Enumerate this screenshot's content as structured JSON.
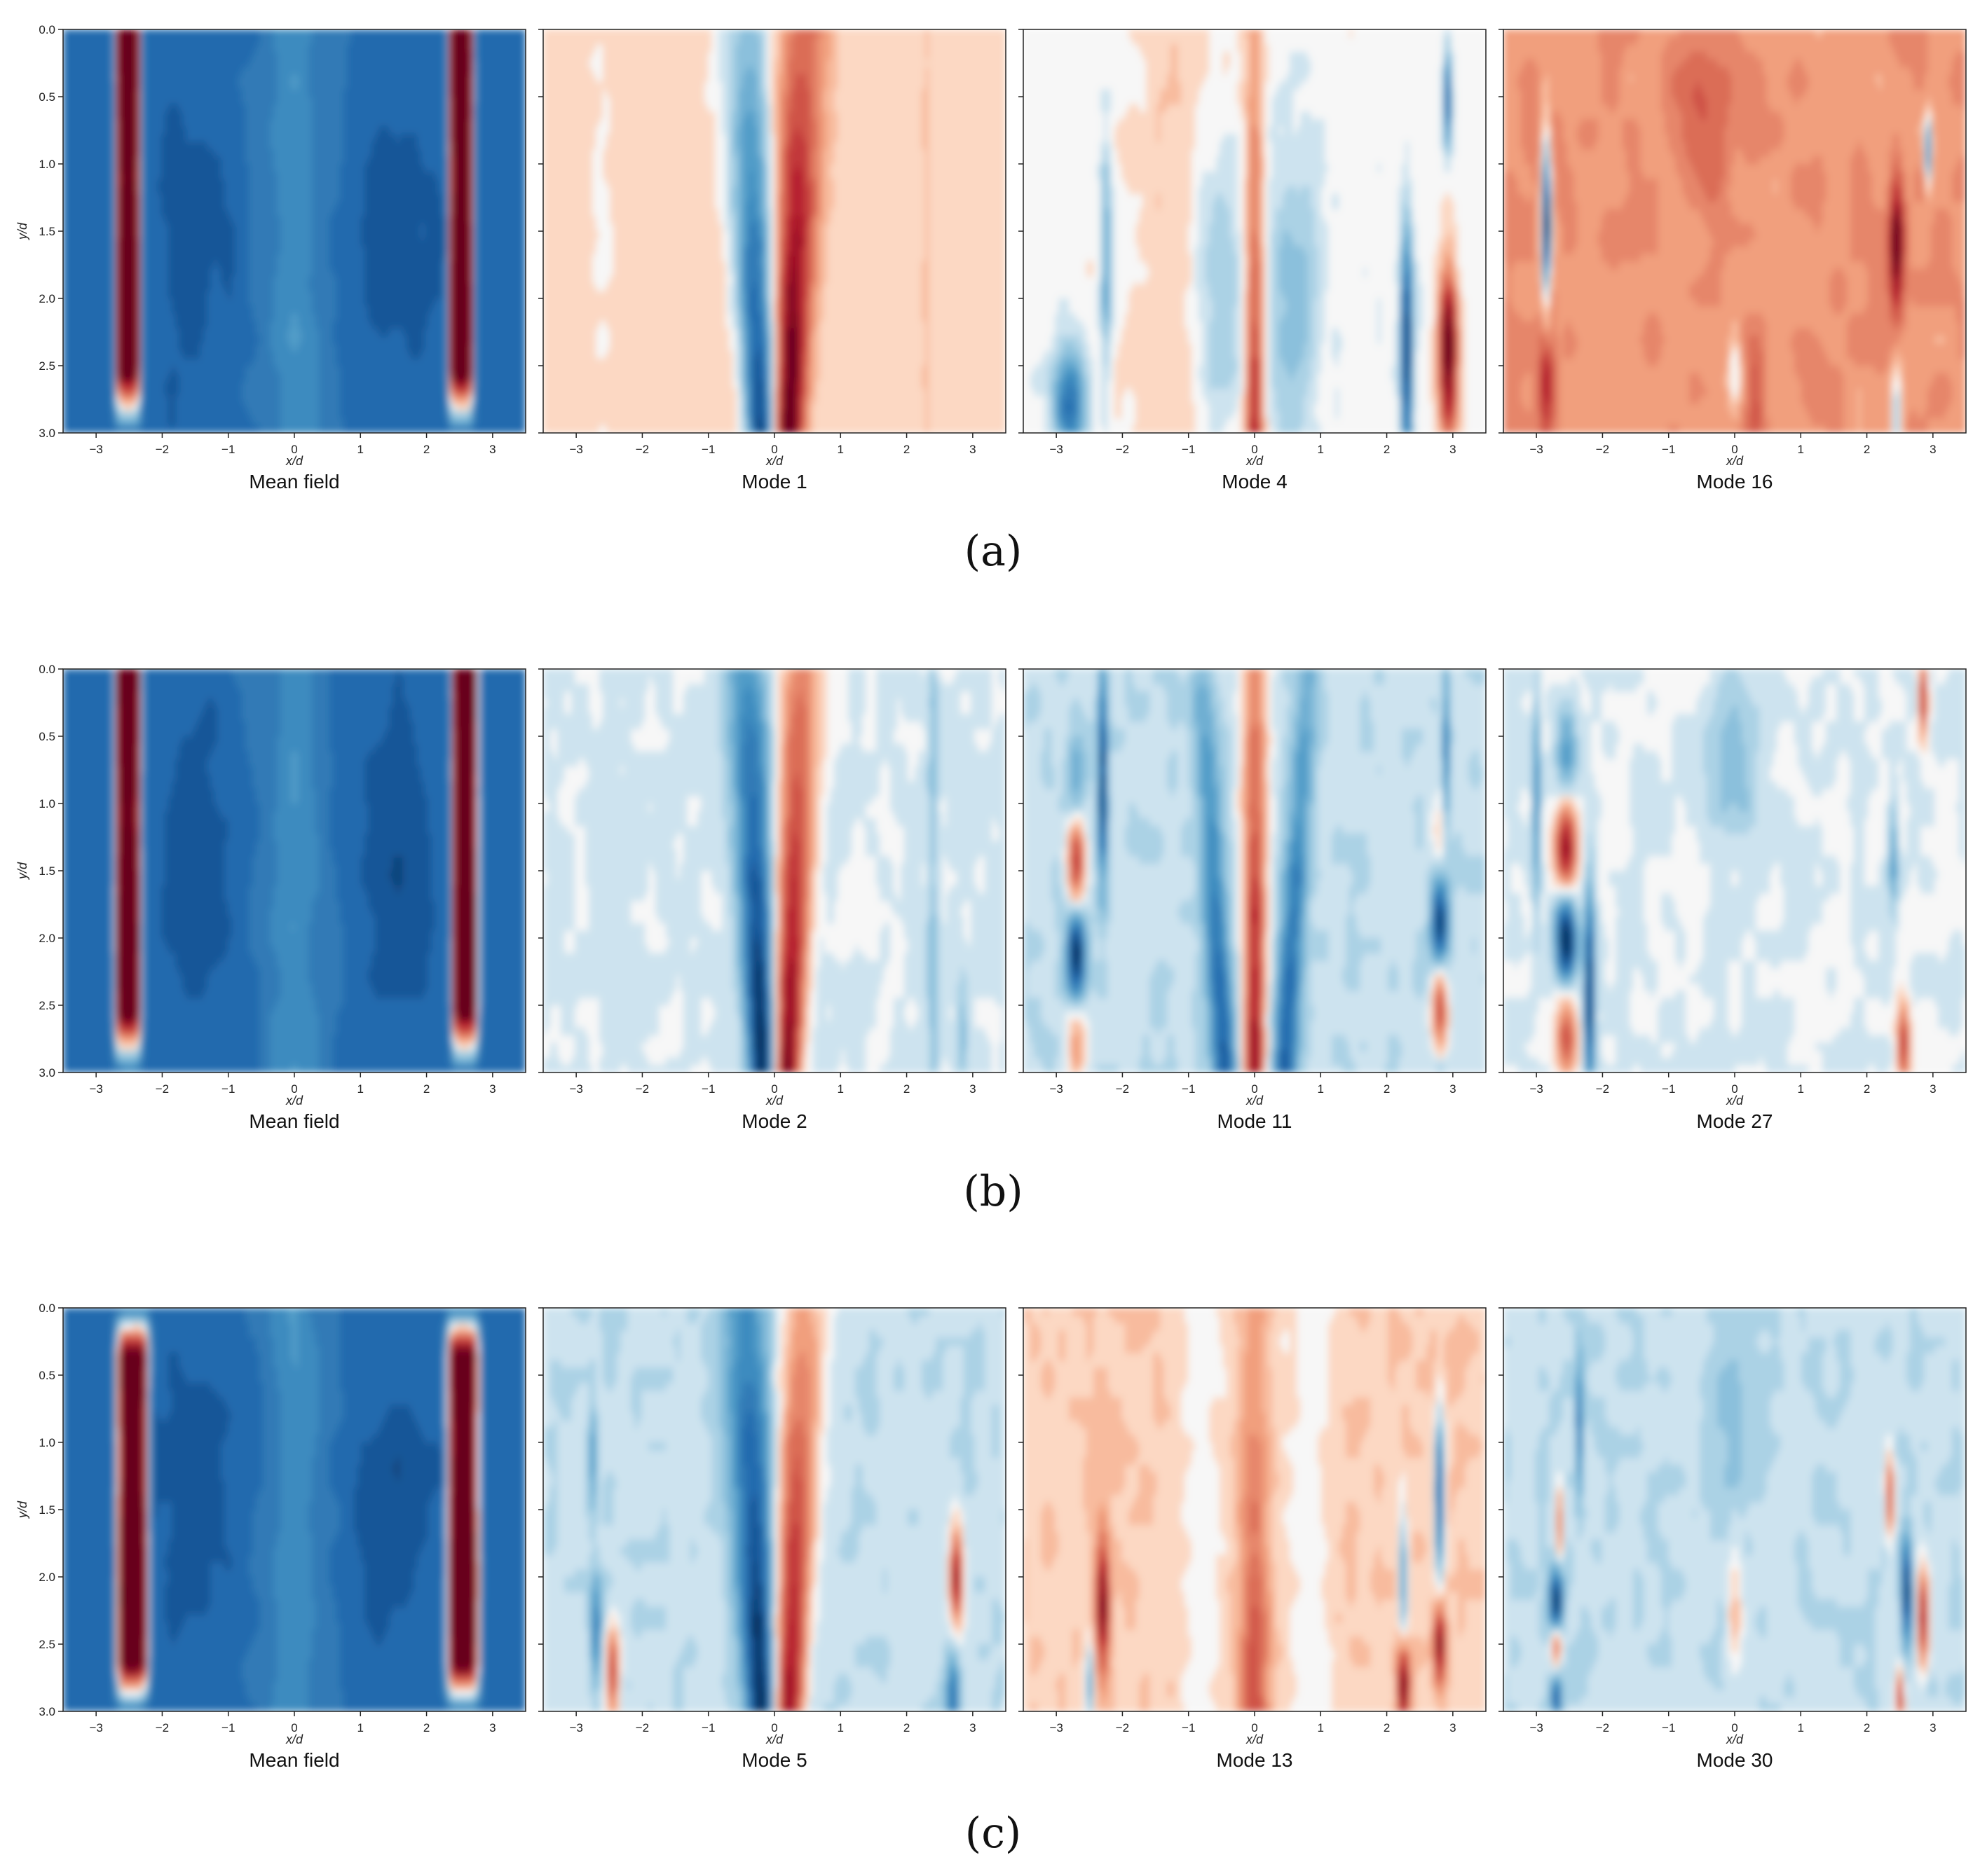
{
  "figure": {
    "rows": [
      {
        "label": "(a)",
        "panels": [
          {
            "caption": "Mean field",
            "kind": "mean",
            "variant": 0
          },
          {
            "caption": "Mode 1",
            "kind": "mode",
            "mode": 1
          },
          {
            "caption": "Mode 4",
            "kind": "mode",
            "mode": 4
          },
          {
            "caption": "Mode 16",
            "kind": "mode",
            "mode": 16
          }
        ]
      },
      {
        "label": "(b)",
        "panels": [
          {
            "caption": "Mean field",
            "kind": "mean",
            "variant": 1
          },
          {
            "caption": "Mode 2",
            "kind": "mode",
            "mode": 2
          },
          {
            "caption": "Mode 11",
            "kind": "mode",
            "mode": 11
          },
          {
            "caption": "Mode 27",
            "kind": "mode",
            "mode": 27
          }
        ]
      },
      {
        "label": "(c)",
        "panels": [
          {
            "caption": "Mean field",
            "kind": "mean",
            "variant": 2
          },
          {
            "caption": "Mode 5",
            "kind": "mode",
            "mode": 5
          },
          {
            "caption": "Mode 13",
            "kind": "mode",
            "mode": 13
          },
          {
            "caption": "Mode 30",
            "kind": "mode",
            "mode": 30
          }
        ]
      }
    ]
  },
  "chart_data": {
    "type": "heatmap",
    "colormap": "diverging red-white-blue (RdBu)",
    "colors": {
      "negative": "#053061",
      "neutral": "#f7f7f7",
      "positive": "#67001f"
    },
    "xlabel": "x/d",
    "ylabel": "y/d",
    "xlim": [
      -3.5,
      3.5
    ],
    "ylim": [
      3.0,
      0.0
    ],
    "x_ticks": [
      -3,
      -2,
      -1,
      0,
      1,
      2,
      3
    ],
    "x_tick_labels": [
      "−3",
      "−2",
      "−1",
      "0",
      "1",
      "2",
      "3"
    ],
    "y_ticks": [
      0.0,
      0.5,
      1.0,
      1.5,
      2.0,
      2.5,
      3.0
    ],
    "y_tick_labels": [
      "0.0",
      "0.5",
      "1.0",
      "1.5",
      "2.0",
      "2.5",
      "3.0"
    ],
    "y_axis_inverted": true,
    "colorbar": false,
    "grid": false,
    "panels": [
      "Mean field",
      "Mode 1",
      "Mode 4",
      "Mode 16",
      "Mean field",
      "Mode 2",
      "Mode 11",
      "Mode 27",
      "Mean field",
      "Mode 5",
      "Mode 13",
      "Mode 30"
    ]
  }
}
